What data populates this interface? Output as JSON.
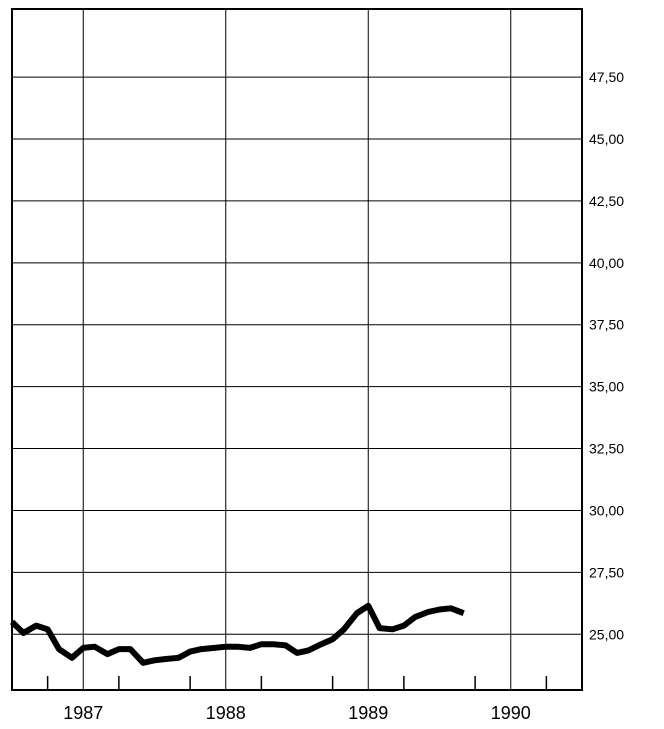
{
  "chart_data": {
    "type": "line",
    "title": "",
    "xlabel": "",
    "ylabel": "",
    "x_tick_labels": [
      "1987",
      "1988",
      "1989",
      "1990"
    ],
    "y_tick_labels": [
      "25,00",
      "27,50",
      "30,00",
      "32,50",
      "35,00",
      "37,50",
      "40,00",
      "42,50",
      "45,00",
      "47,50"
    ],
    "y_ticks": [
      25,
      27.5,
      30,
      32.5,
      35,
      37.5,
      40,
      42.5,
      45,
      47.5
    ],
    "ylim": [
      22.75,
      50.25
    ],
    "xlim": [
      1986.5,
      1990.5
    ],
    "grid": true,
    "y_axis_side": "right",
    "series": [
      {
        "x": [
          1986.5,
          1986.58,
          1986.67,
          1986.75,
          1986.83,
          1986.92,
          1987.0,
          1987.08,
          1987.17,
          1987.25,
          1987.33,
          1987.42,
          1987.5,
          1987.58,
          1987.67,
          1987.75,
          1987.83,
          1987.92,
          1988.0,
          1988.08,
          1988.17,
          1988.25,
          1988.33,
          1988.42,
          1988.5,
          1988.58,
          1988.67,
          1988.75,
          1988.83,
          1988.92,
          1989.0,
          1989.08,
          1989.17,
          1989.25,
          1989.33,
          1989.42,
          1989.5,
          1989.58,
          1989.67
        ],
        "values": [
          25.5,
          25.05,
          25.35,
          25.2,
          24.4,
          24.05,
          24.45,
          24.5,
          24.2,
          24.4,
          24.4,
          23.85,
          23.95,
          24.0,
          24.05,
          24.3,
          24.4,
          24.45,
          24.5,
          24.5,
          24.45,
          24.6,
          24.6,
          24.55,
          24.25,
          24.35,
          24.6,
          24.8,
          25.2,
          25.85,
          26.15,
          25.25,
          25.2,
          25.35,
          25.7,
          25.9,
          26.0,
          26.05,
          25.85
        ]
      }
    ]
  }
}
